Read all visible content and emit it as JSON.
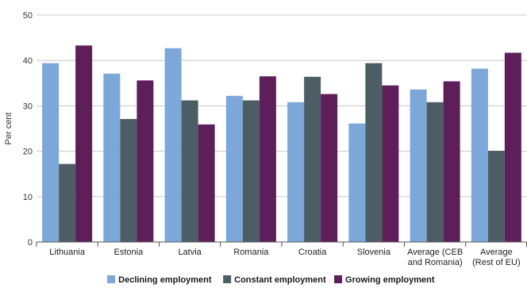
{
  "chart_data": {
    "type": "bar",
    "ylabel": "Per cent",
    "ylim": [
      0,
      50
    ],
    "yticks": [
      0,
      10,
      20,
      30,
      40,
      50
    ],
    "grid": true,
    "legend_position": "bottom",
    "categories": [
      [
        "Lithuania"
      ],
      [
        "Estonia"
      ],
      [
        "Latvia"
      ],
      [
        "Romania"
      ],
      [
        "Croatia"
      ],
      [
        "Slovenia"
      ],
      [
        "Average (CEB",
        "and Romania)"
      ],
      [
        "Average",
        "(Rest of EU)"
      ]
    ],
    "series": [
      {
        "name": "Declining employment",
        "color": "#7ba7d9",
        "values": [
          39.4,
          37.1,
          42.7,
          32.2,
          30.8,
          26.1,
          33.6,
          38.2
        ]
      },
      {
        "name": "Constant employment",
        "color": "#4d5d65",
        "values": [
          17.2,
          27.1,
          31.2,
          31.2,
          36.4,
          39.4,
          30.8,
          20.1
        ]
      },
      {
        "name": "Growing employment",
        "color": "#5e1e5a",
        "values": [
          43.3,
          35.6,
          25.9,
          36.5,
          32.6,
          34.5,
          35.4,
          41.7
        ]
      }
    ]
  }
}
